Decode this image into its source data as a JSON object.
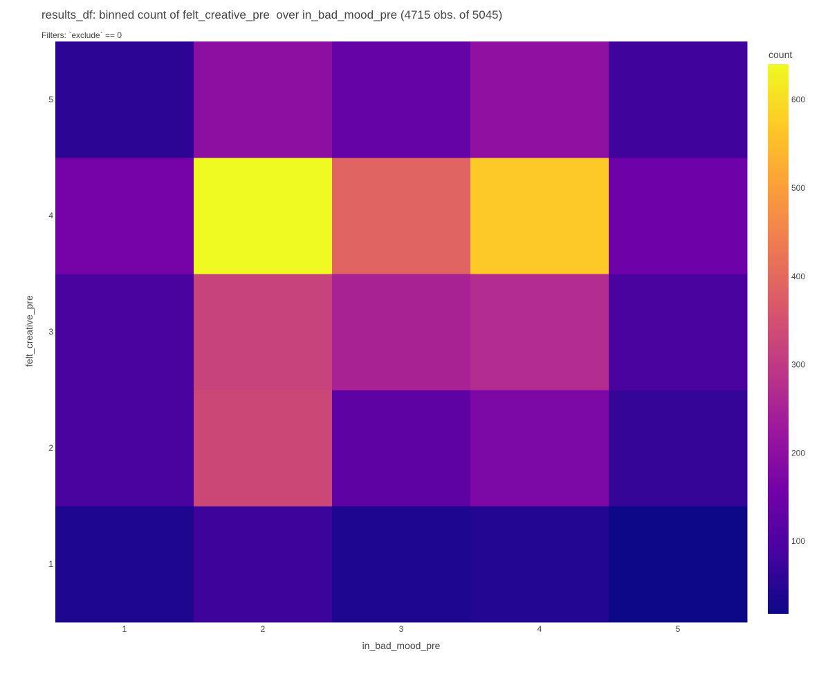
{
  "chart_data": {
    "type": "heatmap",
    "title": "results_df: binned count of felt_creative_pre  over in_bad_mood_pre (4715 obs. of 5045)",
    "subtitle": "Filters: `exclude` == 0",
    "xlabel": "in_bad_mood_pre",
    "ylabel": "felt_creative_pre",
    "x": [
      "1",
      "2",
      "3",
      "4",
      "5"
    ],
    "y": [
      "1",
      "2",
      "3",
      "4",
      "5"
    ],
    "z": [
      [
        40,
        75,
        40,
        45,
        18
      ],
      [
        95,
        330,
        125,
        175,
        65
      ],
      [
        95,
        320,
        250,
        270,
        95
      ],
      [
        160,
        640,
        390,
        570,
        150
      ],
      [
        55,
        200,
        135,
        205,
        80
      ]
    ],
    "colorbar": {
      "title": "count",
      "ticks": [
        100,
        200,
        300,
        400,
        500,
        600
      ],
      "range": [
        18,
        640
      ]
    },
    "colorscale": [
      "#0d0887",
      "#46039f",
      "#7201a8",
      "#9c179e",
      "#bd3786",
      "#d8576b",
      "#ed7953",
      "#fb9f3a",
      "#fdca26",
      "#f0f921"
    ]
  }
}
